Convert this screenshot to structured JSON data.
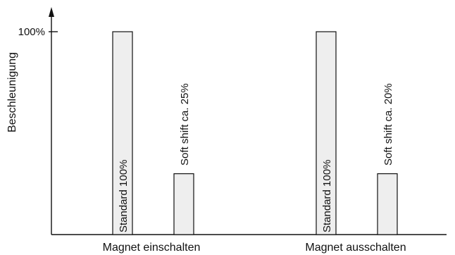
{
  "chart_data": {
    "type": "bar",
    "ylabel": "Beschleunigung",
    "ylim": [
      0,
      100
    ],
    "yticks": [
      {
        "value": 100,
        "label": "100%"
      }
    ],
    "groups": [
      {
        "category": "Magnet einschalten",
        "bars": [
          {
            "label": "Standard 100%",
            "value": 100
          },
          {
            "label": "Soft shift ca. 25%",
            "value": 30
          }
        ]
      },
      {
        "category": "Magnet ausschalten",
        "bars": [
          {
            "label": "Standard 100%",
            "value": 100
          },
          {
            "label": "Soft shift ca. 20%",
            "value": 30
          }
        ]
      }
    ],
    "colors": {
      "bar_fill": "#eeeeee",
      "line": "#111111"
    }
  }
}
